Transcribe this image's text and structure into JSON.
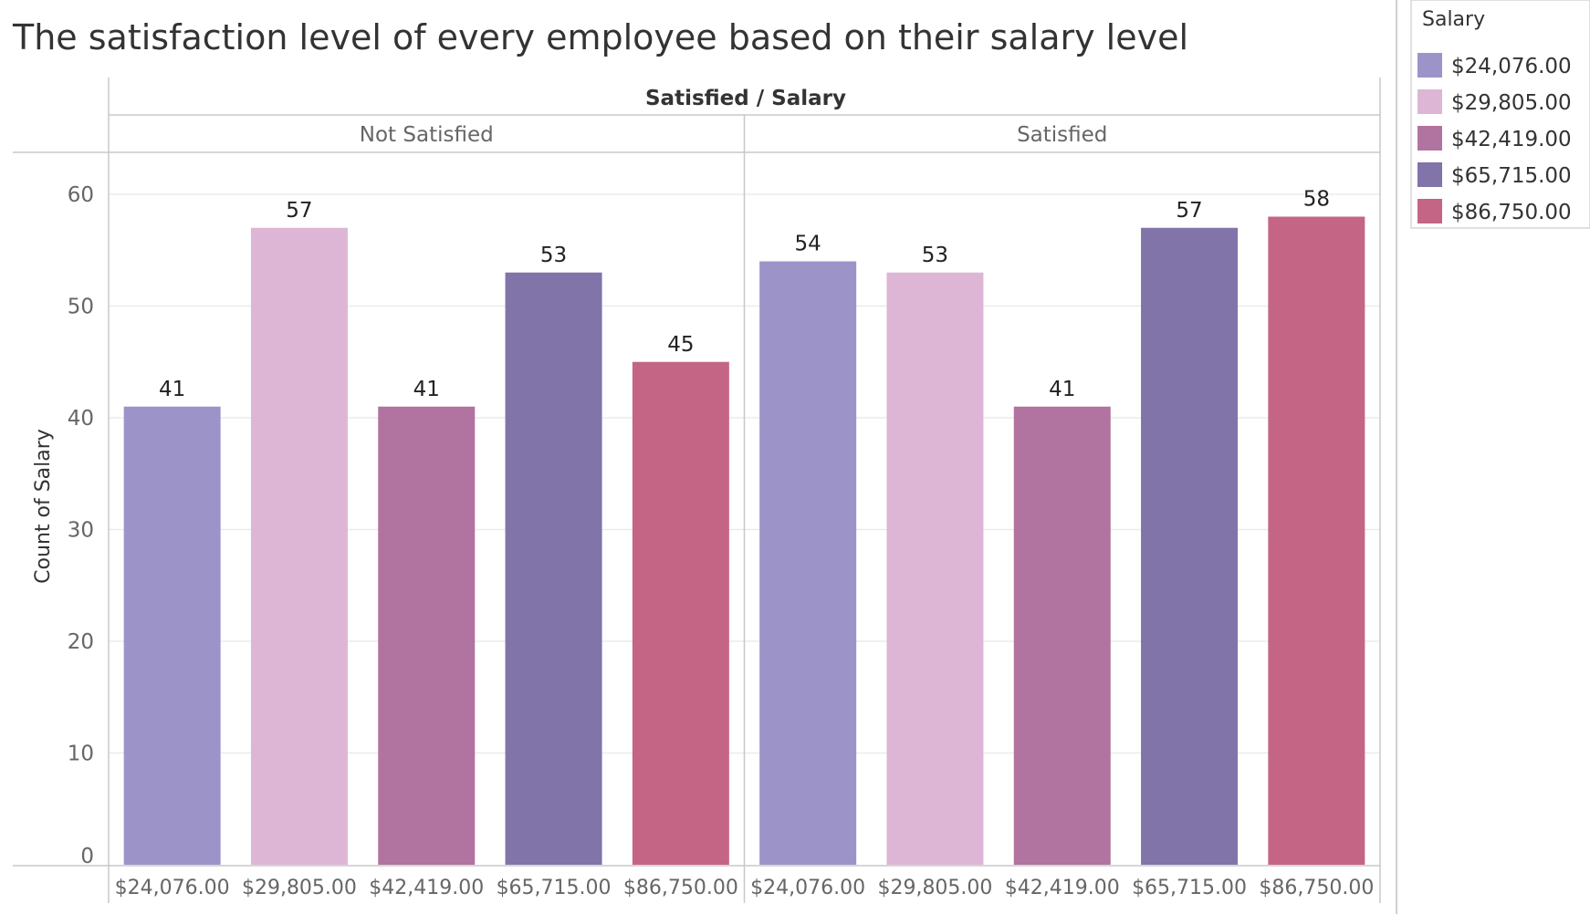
{
  "chart_data": {
    "type": "bar",
    "title": "The satisfaction level of every employee based on their salary level",
    "column_header": "Satisfied / Salary",
    "ylabel": "Count of Salary",
    "ylim": [
      0,
      64
    ],
    "yticks": [
      0,
      10,
      20,
      30,
      40,
      50,
      60
    ],
    "grid": true,
    "legend_position": "right",
    "legend_title": "Salary",
    "categories": [
      "$24,076.00",
      "$29,805.00",
      "$42,419.00",
      "$65,715.00",
      "$86,750.00"
    ],
    "colors": [
      "#9c94c9",
      "#ddb6d6",
      "#b1739f",
      "#8174a9",
      "#c46586"
    ],
    "panels": [
      {
        "name": "Not Satisfied",
        "values": [
          41,
          57,
          41,
          53,
          45
        ]
      },
      {
        "name": "Satisfied",
        "values": [
          54,
          53,
          41,
          57,
          58
        ]
      }
    ]
  }
}
